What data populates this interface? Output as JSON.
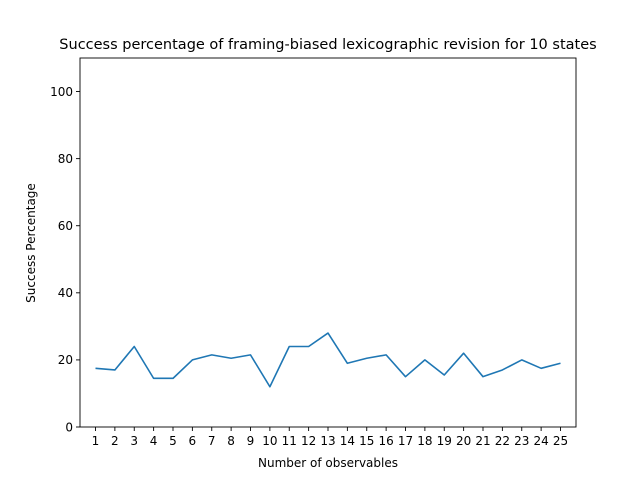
{
  "chart_data": {
    "type": "line",
    "title": "Success percentage of framing-biased lexicographic revision for 10 states",
    "xlabel": "Number of observables",
    "ylabel": "Success Percentage",
    "x": [
      1,
      2,
      3,
      4,
      5,
      6,
      7,
      8,
      9,
      10,
      11,
      12,
      13,
      14,
      15,
      16,
      17,
      18,
      19,
      20,
      21,
      22,
      23,
      24,
      25
    ],
    "x_tick_labels": [
      "1",
      "2",
      "3",
      "4",
      "5",
      "6",
      "7",
      "8",
      "9",
      "10",
      "11",
      "12",
      "13",
      "14",
      "15",
      "16",
      "17",
      "18",
      "19",
      "20",
      "21",
      "22",
      "23",
      "24",
      "25"
    ],
    "series": [
      {
        "color": "#1f77b4",
        "values": [
          17.5,
          17,
          24,
          14.5,
          14.5,
          20,
          21.5,
          20.5,
          21.5,
          12,
          24,
          24,
          28,
          19,
          20.5,
          21.5,
          15,
          20,
          15.5,
          22,
          15,
          17,
          20,
          17.5,
          19
        ]
      }
    ],
    "xlim": [
      0.2,
      25.8
    ],
    "ylim": [
      0,
      110
    ],
    "y_ticks": [
      0,
      20,
      40,
      60,
      80,
      100
    ],
    "y_tick_labels": [
      "0",
      "20",
      "40",
      "60",
      "80",
      "100"
    ],
    "grid": false,
    "legend": "none"
  }
}
